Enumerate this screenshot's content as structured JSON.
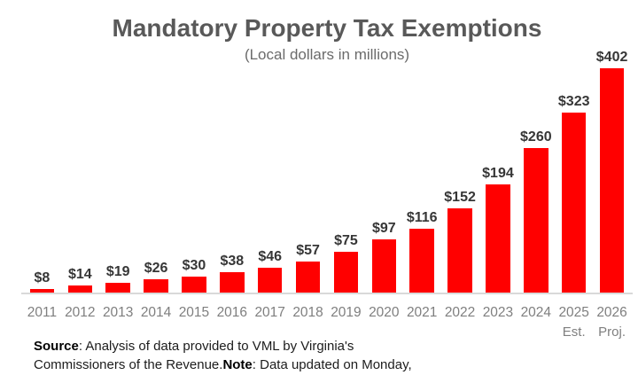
{
  "chart_data": {
    "type": "bar",
    "title": "Mandatory Property Tax Exemptions",
    "subtitle": "(Local dollars in millions)",
    "categories": [
      "2011",
      "2012",
      "2013",
      "2014",
      "2015",
      "2016",
      "2017",
      "2018",
      "2019",
      "2020",
      "2021",
      "2022",
      "2023",
      "2024",
      "2025",
      "2026"
    ],
    "values": [
      8,
      14,
      19,
      26,
      30,
      38,
      46,
      57,
      75,
      97,
      116,
      152,
      194,
      260,
      323,
      402
    ],
    "value_labels": [
      "$8",
      "$14",
      "$19",
      "$26",
      "$30",
      "$38",
      "$46",
      "$57",
      "$75",
      "$97",
      "$116",
      "$152",
      "$194",
      "$260",
      "$323",
      "$402"
    ],
    "tick_sublabels": [
      "",
      "",
      "",
      "",
      "",
      "",
      "",
      "",
      "",
      "",
      "",
      "",
      "",
      "",
      "Est.",
      "Proj."
    ],
    "xlabel": "",
    "ylabel": "",
    "ylim": [
      0,
      402
    ],
    "grid": false,
    "legend": "none",
    "bar_color": "#ff0000",
    "axis_line_color": "#d9d9d9",
    "label_color": "#363636",
    "tick_color": "#7f7f7f",
    "title_color": "#595959"
  },
  "footnote": {
    "lines": [
      [
        {
          "text": "Source",
          "bold": true
        },
        {
          "text": ": Analysis of data provided to VML by Virginia's",
          "bold": false
        }
      ],
      [
        {
          "text": "Commissioners of the Revenue.",
          "bold": false
        },
        {
          "text": "Note",
          "bold": true
        },
        {
          "text": ": Data updated on Monday,",
          "bold": false
        }
      ]
    ]
  }
}
